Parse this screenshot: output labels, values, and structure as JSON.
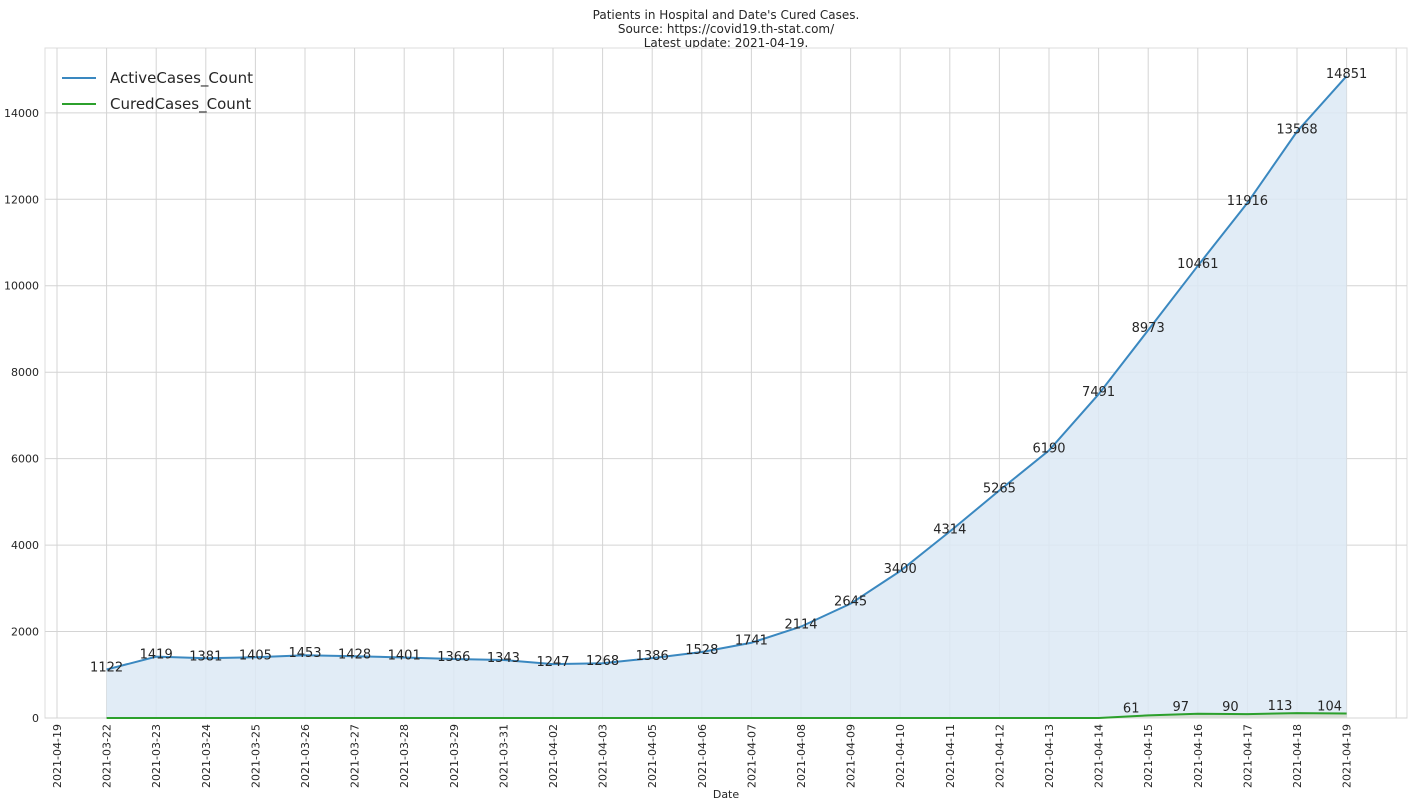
{
  "chart_data": {
    "type": "line",
    "title": [
      "Patients in Hospital and Date's Cured Cases.",
      "Source: https://covid19.th-stat.com/",
      "Latest update: 2021-04-19."
    ],
    "xlabel": "Date",
    "categories": [
      "2021-04-19",
      "2021-03-22",
      "2021-03-23",
      "2021-03-24",
      "2021-03-25",
      "2021-03-26",
      "2021-03-27",
      "2021-03-28",
      "2021-03-29",
      "2021-03-31",
      "2021-04-02",
      "2021-04-03",
      "2021-04-05",
      "2021-04-06",
      "2021-04-07",
      "2021-04-08",
      "2021-04-09",
      "2021-04-10",
      "2021-04-11",
      "2021-04-12",
      "2021-04-13",
      "2021-04-14",
      "2021-04-15",
      "2021-04-16",
      "2021-04-17",
      "2021-04-18",
      "2021-04-19",
      null
    ],
    "series": [
      {
        "name": "ActiveCases_Count",
        "color": "#3a88c0",
        "fill": "#dce9f4",
        "values": [
          null,
          1122,
          1419,
          1381,
          1405,
          1453,
          1428,
          1401,
          1366,
          1343,
          1247,
          1268,
          1386,
          1528,
          1741,
          2114,
          2645,
          3400,
          4314,
          5265,
          6190,
          7491,
          8973,
          10461,
          11916,
          13568,
          14851,
          null
        ]
      },
      {
        "name": "CuredCases_Count",
        "color": "#2ca02c",
        "fill": "#d6ddd0",
        "values": [
          null,
          0,
          0,
          0,
          0,
          0,
          0,
          0,
          0,
          0,
          0,
          0,
          0,
          0,
          0,
          0,
          0,
          0,
          0,
          0,
          0,
          0,
          61,
          97,
          90,
          113,
          104,
          null
        ],
        "value_labels": [
          null,
          null,
          null,
          null,
          null,
          null,
          null,
          null,
          null,
          null,
          null,
          null,
          null,
          null,
          null,
          null,
          null,
          null,
          null,
          null,
          null,
          null,
          "61",
          "97",
          "90",
          "113",
          "104",
          null
        ]
      }
    ],
    "ylim": [
      0,
      15500
    ],
    "yticks": [
      0,
      2000,
      4000,
      6000,
      8000,
      10000,
      12000,
      14000
    ],
    "grid": true,
    "legend": "upper left"
  }
}
